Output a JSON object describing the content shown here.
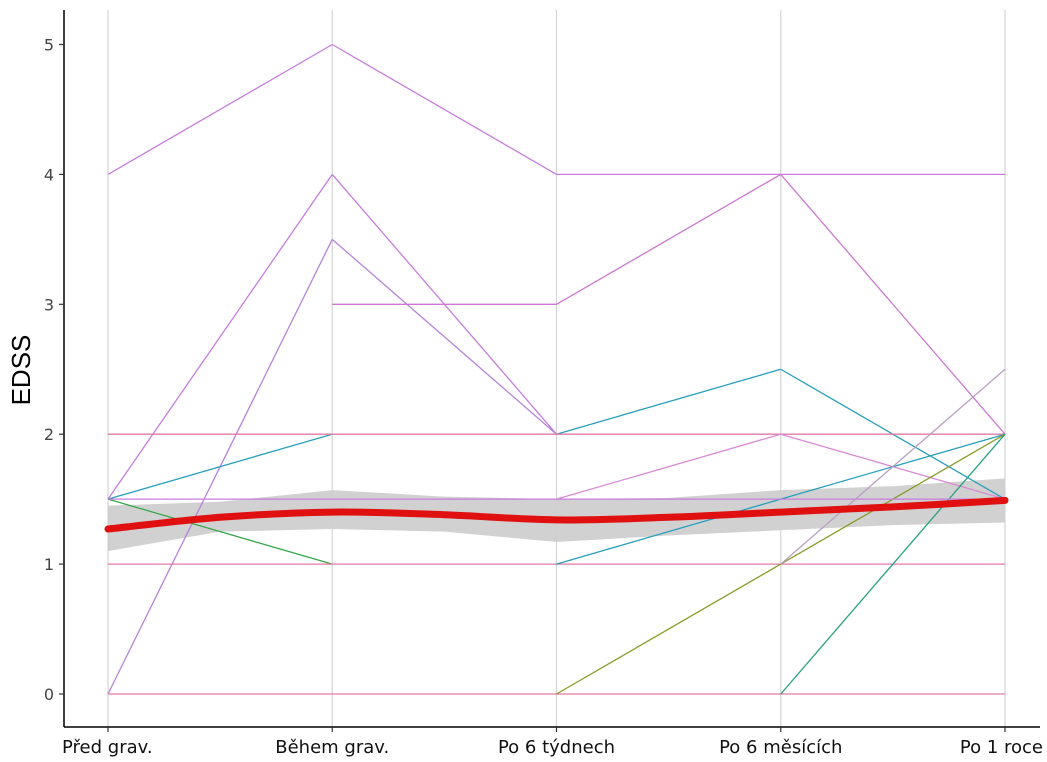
{
  "chart_data": {
    "type": "line",
    "title": "",
    "xlabel": "",
    "ylabel": "EDSS",
    "categories": [
      "Před grav.",
      "Během grav.",
      "Po 6 týdnech",
      "Po 6 měsících",
      "Po 1 roce"
    ],
    "ylim": [
      -0.25,
      5.25
    ],
    "yticks": [
      0,
      1,
      2,
      3,
      4,
      5
    ],
    "grid": "vertical only",
    "legend": "none",
    "series": [
      {
        "values": [
          4,
          5,
          4,
          4,
          4
        ],
        "color": "#c77cdd"
      },
      {
        "values": [
          1.5,
          4,
          2,
          null,
          null
        ],
        "color": "#c77cdd"
      },
      {
        "values": [
          0,
          3.5,
          2,
          null,
          null
        ],
        "color": "#b883d8"
      },
      {
        "values": [
          null,
          3,
          3,
          4,
          2
        ],
        "color": "#cc78d0"
      },
      {
        "values": [
          1.5,
          2,
          null,
          null,
          null
        ],
        "color": "#2a9fbc"
      },
      {
        "values": [
          null,
          null,
          2,
          2.5,
          1.5
        ],
        "color": "#2a9fbc"
      },
      {
        "values": [
          1.5,
          1,
          null,
          null,
          null
        ],
        "color": "#3aa64d"
      },
      {
        "values": [
          2,
          2,
          2,
          2,
          2
        ],
        "color": "#e07aa8"
      },
      {
        "values": [
          1,
          1,
          1,
          1,
          1
        ],
        "color": "#e07aa8"
      },
      {
        "values": [
          0,
          0,
          0,
          0,
          0
        ],
        "color": "#e07aa8"
      },
      {
        "values": [
          null,
          null,
          1.5,
          2,
          1.5
        ],
        "color": "#d98ad4"
      },
      {
        "values": [
          null,
          null,
          1,
          1.5,
          2
        ],
        "color": "#2a9fbc"
      },
      {
        "values": [
          null,
          null,
          0,
          1,
          2
        ],
        "color": "#8a9a2a"
      },
      {
        "values": [
          null,
          null,
          null,
          0,
          2
        ],
        "color": "#2aa080"
      },
      {
        "values": [
          1.5,
          1.5,
          1.5,
          1.5,
          1.5
        ],
        "color": "#c77cdd"
      },
      {
        "values": [
          null,
          null,
          null,
          1,
          2.5
        ],
        "color": "#b8a0c0"
      }
    ],
    "trend": {
      "color": "#e01010",
      "band_color": "#cfcfcf",
      "x": [
        0,
        0.5,
        1,
        1.5,
        2,
        2.5,
        3,
        3.5,
        4
      ],
      "values": [
        1.27,
        1.36,
        1.4,
        1.38,
        1.34,
        1.36,
        1.4,
        1.44,
        1.49
      ],
      "lower": [
        1.1,
        1.25,
        1.27,
        1.25,
        1.17,
        1.22,
        1.26,
        1.3,
        1.32
      ],
      "upper": [
        1.45,
        1.48,
        1.57,
        1.52,
        1.5,
        1.51,
        1.57,
        1.6,
        1.66
      ]
    }
  }
}
